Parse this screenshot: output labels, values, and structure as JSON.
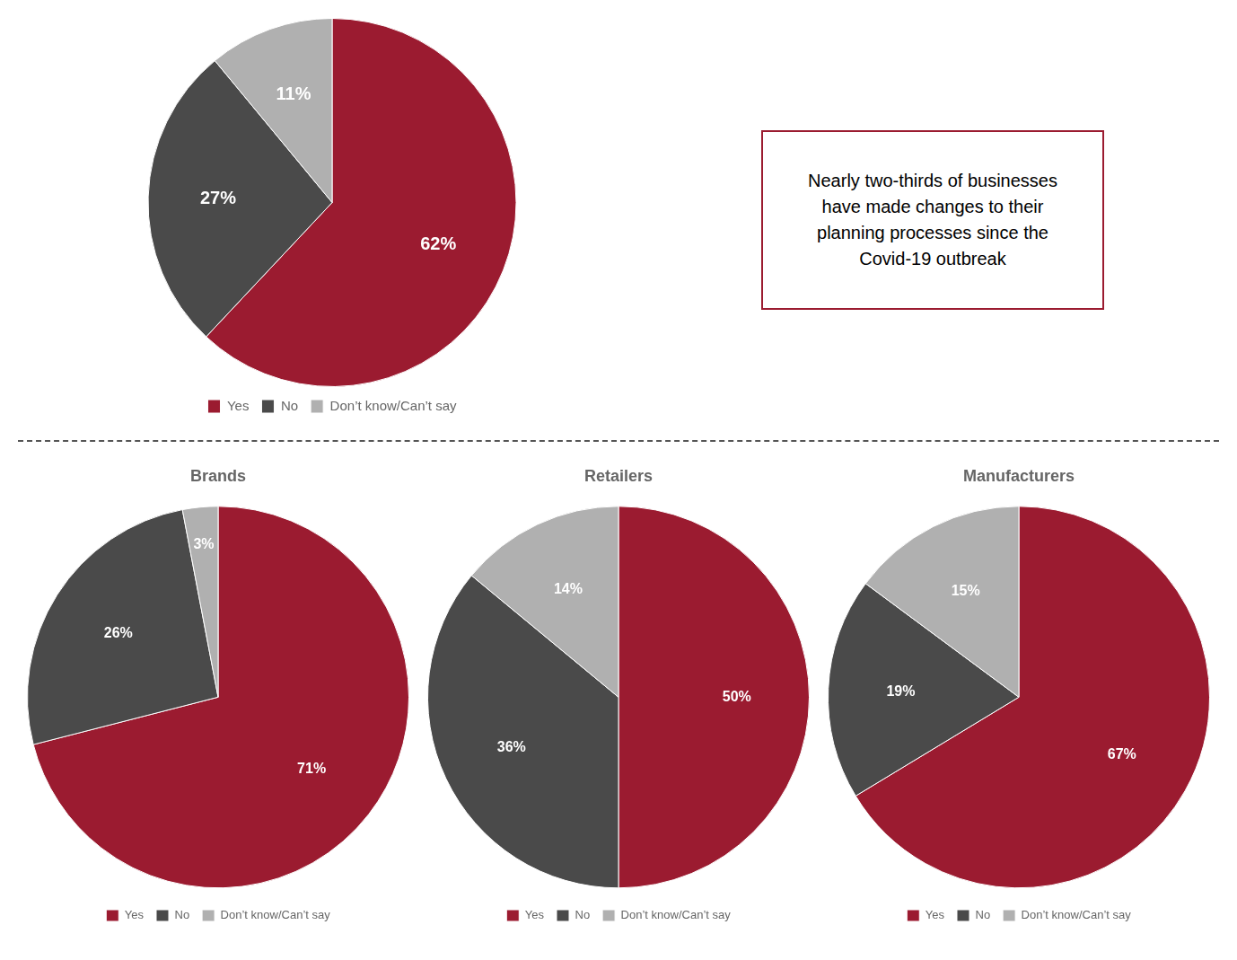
{
  "chart_data": [
    {
      "type": "pie",
      "categories": [
        "Yes",
        "No",
        "Don’t know/Can’t say"
      ],
      "values": [
        62,
        27,
        11
      ],
      "value_labels": [
        "62%",
        "27%",
        "11%"
      ],
      "colors": [
        "#9B1B30",
        "#4A4A4A",
        "#B0B0B0"
      ],
      "data_labels": true,
      "legend": "bottom",
      "annotation": "Nearly two-thirds of businesses\nhave made changes to their\nplanning processes since the\nCovid-19 outbreak"
    },
    {
      "type": "pie",
      "title": "Brands",
      "categories": [
        "Yes",
        "No",
        "Don’t know/Can’t say"
      ],
      "values": [
        71,
        26,
        3
      ],
      "value_labels": [
        "71%",
        "26%",
        "3%"
      ],
      "colors": [
        "#9B1B30",
        "#4A4A4A",
        "#B0B0B0"
      ],
      "data_labels": true,
      "legend": "bottom"
    },
    {
      "type": "pie",
      "title": "Retailers",
      "categories": [
        "Yes",
        "No",
        "Don’t know/Can’t say"
      ],
      "values": [
        50,
        36,
        14
      ],
      "value_labels": [
        "50%",
        "36%",
        "14%"
      ],
      "colors": [
        "#9B1B30",
        "#4A4A4A",
        "#B0B0B0"
      ],
      "data_labels": true,
      "legend": "bottom"
    },
    {
      "type": "pie",
      "title": "Manufacturers",
      "categories": [
        "Yes",
        "No",
        "Don’t know/Can’t say"
      ],
      "values": [
        67,
        19,
        15
      ],
      "value_labels": [
        "67%",
        "19%",
        "15%"
      ],
      "colors": [
        "#9B1B30",
        "#4A4A4A",
        "#B0B0B0"
      ],
      "data_labels": true,
      "legend": "bottom"
    }
  ]
}
